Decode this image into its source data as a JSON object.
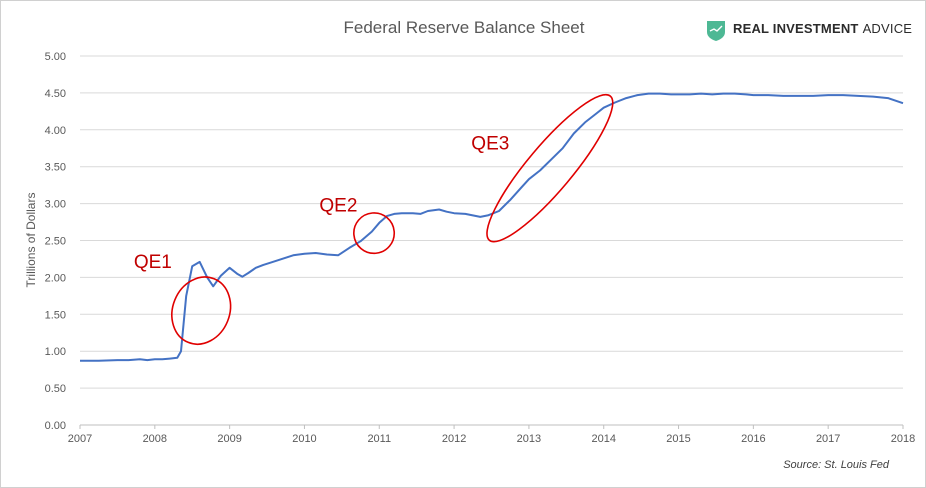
{
  "chart_data": {
    "type": "line",
    "title": "Federal Reserve Balance Sheet",
    "ylabel": "Trillions of Dollars",
    "xlabel": "",
    "xlim": [
      2007,
      2018
    ],
    "ylim": [
      0,
      5
    ],
    "grid": true,
    "x_ticks": [
      "2007",
      "2008",
      "2009",
      "2010",
      "2011",
      "2012",
      "2013",
      "2014",
      "2015",
      "2016",
      "2017",
      "2018"
    ],
    "y_ticks": [
      "0.00",
      "0.50",
      "1.00",
      "1.50",
      "2.00",
      "2.50",
      "3.00",
      "3.50",
      "4.00",
      "4.50",
      "5.00"
    ],
    "series": [
      {
        "color": "#4472c4",
        "x": [
          2007.0,
          2007.25,
          2007.5,
          2007.65,
          2007.8,
          2007.9,
          2008.0,
          2008.1,
          2008.2,
          2008.3,
          2008.35,
          2008.42,
          2008.5,
          2008.6,
          2008.7,
          2008.78,
          2008.88,
          2009.0,
          2009.1,
          2009.17,
          2009.25,
          2009.35,
          2009.45,
          2009.55,
          2009.7,
          2009.85,
          2010.0,
          2010.15,
          2010.3,
          2010.45,
          2010.6,
          2010.75,
          2010.9,
          2011.0,
          2011.1,
          2011.2,
          2011.3,
          2011.45,
          2011.55,
          2011.65,
          2011.8,
          2011.9,
          2012.0,
          2012.15,
          2012.25,
          2012.35,
          2012.45,
          2012.6,
          2012.75,
          2012.9,
          2013.0,
          2013.15,
          2013.3,
          2013.45,
          2013.6,
          2013.75,
          2013.9,
          2014.0,
          2014.15,
          2014.3,
          2014.45,
          2014.6,
          2014.75,
          2014.9,
          2015.0,
          2015.15,
          2015.3,
          2015.45,
          2015.6,
          2015.75,
          2015.9,
          2016.0,
          2016.2,
          2016.4,
          2016.6,
          2016.8,
          2017.0,
          2017.2,
          2017.4,
          2017.6,
          2017.8,
          2018.0
        ],
        "values": [
          0.87,
          0.87,
          0.88,
          0.88,
          0.89,
          0.88,
          0.89,
          0.89,
          0.9,
          0.91,
          1.0,
          1.75,
          2.15,
          2.21,
          2.0,
          1.88,
          2.02,
          2.13,
          2.05,
          2.01,
          2.06,
          2.13,
          2.17,
          2.2,
          2.25,
          2.3,
          2.32,
          2.33,
          2.31,
          2.3,
          2.4,
          2.49,
          2.62,
          2.74,
          2.83,
          2.86,
          2.87,
          2.87,
          2.86,
          2.9,
          2.92,
          2.89,
          2.87,
          2.86,
          2.84,
          2.82,
          2.84,
          2.9,
          3.05,
          3.22,
          3.33,
          3.45,
          3.6,
          3.75,
          3.95,
          4.1,
          4.22,
          4.3,
          4.37,
          4.43,
          4.47,
          4.49,
          4.49,
          4.48,
          4.48,
          4.48,
          4.49,
          4.48,
          4.49,
          4.49,
          4.48,
          4.47,
          4.47,
          4.46,
          4.46,
          4.46,
          4.47,
          4.47,
          4.46,
          4.45,
          4.43,
          4.36
        ]
      }
    ],
    "annotations": [
      {
        "label": "QE1",
        "cx": 2008.62,
        "cy": 1.55,
        "rx": 0.38,
        "ry": 0.93,
        "angle": 22,
        "label_x": 2007.72,
        "label_y": 2.13
      },
      {
        "label": "QE2",
        "cx": 2010.93,
        "cy": 2.6,
        "rx": 0.27,
        "ry": 0.51,
        "angle": 40,
        "label_x": 2010.2,
        "label_y": 2.89
      },
      {
        "label": "QE3",
        "cx": 2013.28,
        "cy": 3.48,
        "rx": 0.3,
        "ry": 2.55,
        "angle": 40,
        "label_x": 2012.23,
        "label_y": 3.73
      }
    ],
    "source": "Source: St. Louis Fed"
  },
  "branding": {
    "name_bold": "REAL INVESTMENT",
    "name_regular": "ADVICE",
    "logo_color": "#4db894"
  }
}
